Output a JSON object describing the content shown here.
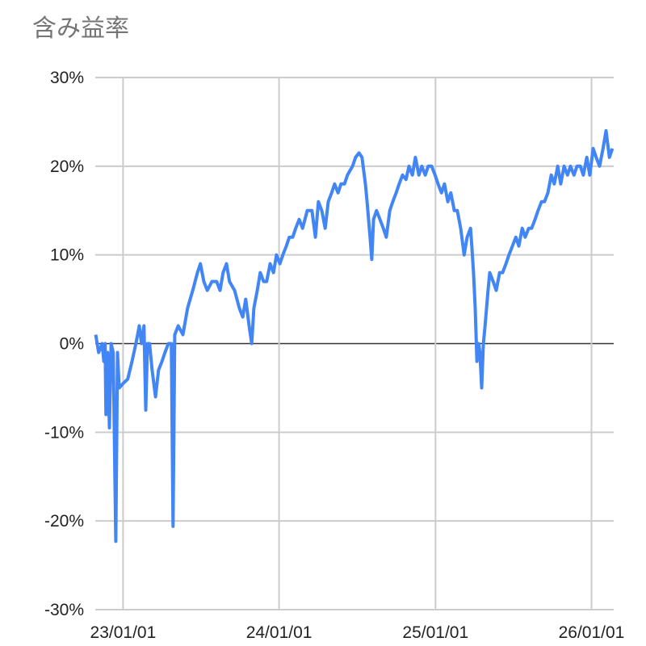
{
  "chart_data": {
    "type": "line",
    "title": "含み益率",
    "xlabel": "",
    "ylabel": "",
    "xlim": [
      "2022-10-28",
      "2026-02-22"
    ],
    "ylim": [
      -30,
      30
    ],
    "grid": true,
    "legend": "none",
    "line_color": "#4285F4",
    "baseline_color": "#333333",
    "grid_color": "#cccccc",
    "y_ticks": [
      {
        "value": 30,
        "label": "30%"
      },
      {
        "value": 20,
        "label": "20%"
      },
      {
        "value": 10,
        "label": "10%"
      },
      {
        "value": 0,
        "label": "0%"
      },
      {
        "value": -10,
        "label": "-10%"
      },
      {
        "value": -20,
        "label": "-20%"
      },
      {
        "value": -30,
        "label": "-30%"
      }
    ],
    "x_ticks": [
      {
        "value": "2023-01-01",
        "label": "23/01/01"
      },
      {
        "value": "2024-01-01",
        "label": "24/01/01"
      },
      {
        "value": "2025-01-01",
        "label": "25/01/01"
      },
      {
        "value": "2026-01-01",
        "label": "26/01/01"
      }
    ],
    "series": [
      {
        "points": [
          [
            "2022-10-29",
            1
          ],
          [
            "2022-11-05",
            -1
          ],
          [
            "2022-11-13",
            0
          ],
          [
            "2022-11-17",
            -2
          ],
          [
            "2022-11-20",
            0
          ],
          [
            "2022-11-22",
            -8
          ],
          [
            "2022-11-26",
            -1
          ],
          [
            "2022-11-30",
            -9.5
          ],
          [
            "2022-12-04",
            0
          ],
          [
            "2022-12-09",
            -1
          ],
          [
            "2022-12-15",
            -22.3
          ],
          [
            "2022-12-19",
            -1
          ],
          [
            "2022-12-23",
            -5
          ],
          [
            "2023-01-01",
            -4.5
          ],
          [
            "2023-01-12",
            -4
          ],
          [
            "2023-01-22",
            -2
          ],
          [
            "2023-01-31",
            0
          ],
          [
            "2023-02-08",
            2
          ],
          [
            "2023-02-13",
            0
          ],
          [
            "2023-02-19",
            2
          ],
          [
            "2023-02-23",
            -7.5
          ],
          [
            "2023-02-27",
            0
          ],
          [
            "2023-03-04",
            0
          ],
          [
            "2023-03-10",
            -3
          ],
          [
            "2023-03-18",
            -6
          ],
          [
            "2023-03-25",
            -3
          ],
          [
            "2023-04-02",
            -2
          ],
          [
            "2023-04-09",
            -1
          ],
          [
            "2023-04-17",
            0
          ],
          [
            "2023-04-24",
            0
          ],
          [
            "2023-04-28",
            -20.6
          ],
          [
            "2023-05-02",
            1
          ],
          [
            "2023-05-10",
            2
          ],
          [
            "2023-05-21",
            1
          ],
          [
            "2023-06-01",
            4
          ],
          [
            "2023-06-13",
            6
          ],
          [
            "2023-06-24",
            8
          ],
          [
            "2023-07-01",
            9
          ],
          [
            "2023-07-09",
            7
          ],
          [
            "2023-07-17",
            6
          ],
          [
            "2023-07-28",
            7
          ],
          [
            "2023-08-08",
            7
          ],
          [
            "2023-08-16",
            6
          ],
          [
            "2023-08-23",
            8
          ],
          [
            "2023-08-31",
            9
          ],
          [
            "2023-09-07",
            7
          ],
          [
            "2023-09-19",
            6
          ],
          [
            "2023-09-30",
            4
          ],
          [
            "2023-10-08",
            3
          ],
          [
            "2023-10-15",
            5
          ],
          [
            "2023-10-23",
            2
          ],
          [
            "2023-10-29",
            0
          ],
          [
            "2023-11-03",
            4
          ],
          [
            "2023-11-11",
            6
          ],
          [
            "2023-11-18",
            8
          ],
          [
            "2023-11-26",
            7
          ],
          [
            "2023-12-03",
            7
          ],
          [
            "2023-12-11",
            9
          ],
          [
            "2023-12-19",
            8
          ],
          [
            "2023-12-26",
            10
          ],
          [
            "2024-01-03",
            9
          ],
          [
            "2024-01-10",
            10
          ],
          [
            "2024-01-18",
            11
          ],
          [
            "2024-01-25",
            12
          ],
          [
            "2024-02-02",
            12
          ],
          [
            "2024-02-09",
            13
          ],
          [
            "2024-02-17",
            14
          ],
          [
            "2024-02-25",
            13
          ],
          [
            "2024-03-07",
            15
          ],
          [
            "2024-03-18",
            15
          ],
          [
            "2024-03-26",
            12
          ],
          [
            "2024-04-02",
            16
          ],
          [
            "2024-04-10",
            15
          ],
          [
            "2024-04-18",
            13
          ],
          [
            "2024-04-25",
            16
          ],
          [
            "2024-05-03",
            17
          ],
          [
            "2024-05-10",
            18
          ],
          [
            "2024-05-18",
            17
          ],
          [
            "2024-05-25",
            18
          ],
          [
            "2024-06-02",
            18
          ],
          [
            "2024-06-09",
            19
          ],
          [
            "2024-06-21",
            20
          ],
          [
            "2024-06-28",
            21
          ],
          [
            "2024-07-06",
            21.5
          ],
          [
            "2024-07-13",
            21
          ],
          [
            "2024-07-21",
            18
          ],
          [
            "2024-07-25",
            16
          ],
          [
            "2024-08-01",
            12
          ],
          [
            "2024-08-05",
            9.5
          ],
          [
            "2024-08-09",
            14
          ],
          [
            "2024-08-16",
            15
          ],
          [
            "2024-08-24",
            14
          ],
          [
            "2024-09-01",
            13
          ],
          [
            "2024-09-08",
            12
          ],
          [
            "2024-09-16",
            15
          ],
          [
            "2024-09-23",
            16
          ],
          [
            "2024-10-01",
            17
          ],
          [
            "2024-10-08",
            18
          ],
          [
            "2024-10-16",
            19
          ],
          [
            "2024-10-24",
            18.5
          ],
          [
            "2024-10-31",
            20
          ],
          [
            "2024-11-08",
            19
          ],
          [
            "2024-11-15",
            21
          ],
          [
            "2024-11-23",
            19
          ],
          [
            "2024-11-30",
            20
          ],
          [
            "2024-12-08",
            19
          ],
          [
            "2024-12-15",
            20
          ],
          [
            "2024-12-23",
            20
          ],
          [
            "2024-12-31",
            19
          ],
          [
            "2025-01-07",
            18
          ],
          [
            "2025-01-15",
            17
          ],
          [
            "2025-01-22",
            18
          ],
          [
            "2025-01-30",
            16
          ],
          [
            "2025-02-06",
            17
          ],
          [
            "2025-02-14",
            15
          ],
          [
            "2025-02-21",
            15
          ],
          [
            "2025-03-01",
            13
          ],
          [
            "2025-03-09",
            10
          ],
          [
            "2025-03-16",
            12
          ],
          [
            "2025-03-24",
            13
          ],
          [
            "2025-03-27",
            11
          ],
          [
            "2025-03-31",
            8
          ],
          [
            "2025-04-04",
            4
          ],
          [
            "2025-04-08",
            -2
          ],
          [
            "2025-04-12",
            0
          ],
          [
            "2025-04-15",
            -1
          ],
          [
            "2025-04-19",
            -5
          ],
          [
            "2025-04-23",
            0
          ],
          [
            "2025-04-27",
            2
          ],
          [
            "2025-05-04",
            6
          ],
          [
            "2025-05-08",
            8
          ],
          [
            "2025-05-16",
            7
          ],
          [
            "2025-05-23",
            6
          ],
          [
            "2025-05-31",
            8
          ],
          [
            "2025-06-07",
            8
          ],
          [
            "2025-06-15",
            9
          ],
          [
            "2025-06-22",
            10
          ],
          [
            "2025-06-30",
            11
          ],
          [
            "2025-07-08",
            12
          ],
          [
            "2025-07-15",
            11
          ],
          [
            "2025-07-23",
            13
          ],
          [
            "2025-07-30",
            12
          ],
          [
            "2025-08-07",
            13
          ],
          [
            "2025-08-14",
            13
          ],
          [
            "2025-08-22",
            14
          ],
          [
            "2025-08-29",
            15
          ],
          [
            "2025-09-06",
            16
          ],
          [
            "2025-09-13",
            16
          ],
          [
            "2025-09-21",
            17
          ],
          [
            "2025-09-29",
            19
          ],
          [
            "2025-10-06",
            18
          ],
          [
            "2025-10-14",
            20
          ],
          [
            "2025-10-21",
            18
          ],
          [
            "2025-10-29",
            20
          ],
          [
            "2025-11-06",
            19
          ],
          [
            "2025-11-13",
            20
          ],
          [
            "2025-11-21",
            19
          ],
          [
            "2025-11-28",
            20
          ],
          [
            "2025-12-06",
            20
          ],
          [
            "2025-12-13",
            19
          ],
          [
            "2025-12-21",
            21
          ],
          [
            "2025-12-28",
            19
          ],
          [
            "2026-01-05",
            22
          ],
          [
            "2026-01-12",
            21
          ],
          [
            "2026-01-20",
            20
          ],
          [
            "2026-01-28",
            22
          ],
          [
            "2026-02-04",
            24
          ],
          [
            "2026-02-12",
            21
          ],
          [
            "2026-02-19",
            22
          ]
        ]
      }
    ]
  }
}
